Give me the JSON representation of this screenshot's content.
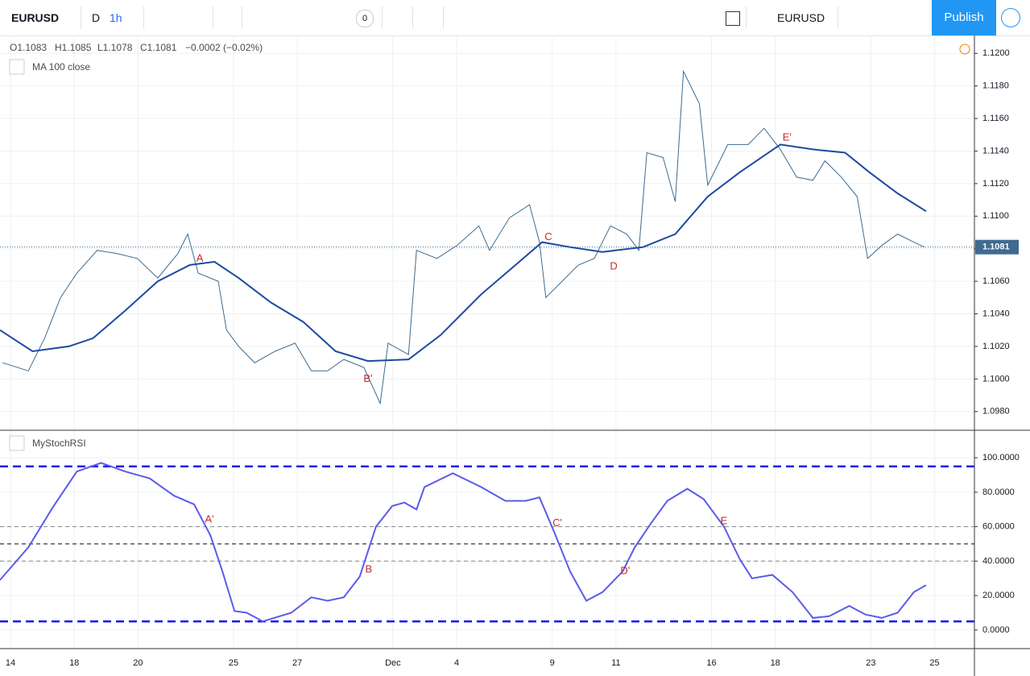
{
  "toolbar": {
    "symbol": "EURUSD",
    "period_d": "D",
    "interval": "1h",
    "alerts_count": "0",
    "compare_symbol": "EURUSD",
    "publish": "Publish"
  },
  "legend": {
    "open": "O1.1083",
    "high": "H1.1085",
    "low": "L1.1078",
    "close": "C1.1081",
    "change": "−0.0002 (−0.02%)"
  },
  "chart_data": [
    {
      "type": "line",
      "title": "MA 100 close",
      "ylim": [
        1.0969,
        1.1211
      ],
      "yticks": [
        {
          "value": 1.098,
          "label": "1.0980"
        },
        {
          "value": 1.1,
          "label": "1.1000"
        },
        {
          "value": 1.102,
          "label": "1.1020"
        },
        {
          "value": 1.104,
          "label": "1.1040"
        },
        {
          "value": 1.106,
          "label": "1.1060"
        },
        {
          "value": 1.108,
          "label": "1.1080"
        },
        {
          "value": 1.11,
          "label": "1.1100"
        },
        {
          "value": 1.112,
          "label": "1.1120"
        },
        {
          "value": 1.114,
          "label": "1.1140"
        },
        {
          "value": 1.116,
          "label": "1.1160"
        },
        {
          "value": 1.118,
          "label": "1.1180"
        },
        {
          "value": 1.12,
          "label": "1.1200"
        }
      ],
      "grid": true,
      "last_price": {
        "value": 1.1081,
        "label": "1.1081"
      },
      "series": [
        {
          "name": "EURUSD",
          "color": "#3e6b8f",
          "width": 1,
          "x": [
            -0.25,
            0.56,
            1.07,
            1.57,
            2.08,
            2.72,
            3.35,
            3.98,
            4.62,
            5.25,
            5.56,
            5.89,
            6.52,
            6.78,
            7.16,
            7.66,
            8.3,
            8.93,
            9.44,
            9.95,
            10.46,
            11.09,
            11.6,
            11.85,
            12.49,
            12.74,
            13.38,
            14.01,
            14.7,
            15.03,
            15.66,
            16.29,
            16.6,
            16.8,
            17.31,
            17.82,
            18.32,
            18.83,
            19.34,
            19.72,
            19.97,
            20.48,
            20.86,
            21.12,
            21.62,
            21.88,
            22.51,
            23.15,
            23.65,
            24.16,
            24.67,
            25.18,
            25.56,
            26.07,
            26.57,
            26.9,
            27.34,
            27.84,
            28.35,
            28.68
          ],
          "values": [
            1.101,
            1.1005,
            1.1025,
            1.105,
            1.1065,
            1.1079,
            1.1077,
            1.1074,
            1.1062,
            1.1077,
            1.1089,
            1.1065,
            1.106,
            1.103,
            1.102,
            1.101,
            1.1017,
            1.1022,
            1.1005,
            1.1005,
            1.1012,
            1.1007,
            1.0985,
            1.1022,
            1.1015,
            1.1079,
            1.1074,
            1.1082,
            1.1094,
            1.1079,
            1.1099,
            1.1107,
            1.1084,
            1.105,
            1.106,
            1.107,
            1.1074,
            1.1094,
            1.1089,
            1.1079,
            1.1139,
            1.1136,
            1.1109,
            1.1189,
            1.1169,
            1.1119,
            1.1144,
            1.1144,
            1.1154,
            1.1141,
            1.1124,
            1.1122,
            1.1134,
            1.1124,
            1.1112,
            1.1074,
            1.1082,
            1.1089,
            1.1084,
            1.1081
          ]
        },
        {
          "name": "MA 100 close",
          "color": "#1c4aa0",
          "width": 2,
          "x": [
            -0.33,
            0.69,
            1.83,
            2.59,
            3.6,
            4.62,
            5.63,
            6.4,
            7.16,
            8.17,
            9.19,
            10.2,
            11.22,
            12.49,
            13.5,
            14.77,
            15.79,
            16.68,
            17.56,
            18.58,
            19.85,
            20.86,
            21.88,
            22.89,
            24.16,
            25.18,
            26.19,
            26.95,
            27.84,
            28.73
          ],
          "values": [
            1.103,
            1.1017,
            1.102,
            1.1025,
            1.1042,
            1.106,
            1.107,
            1.1072,
            1.1062,
            1.1047,
            1.1035,
            1.1017,
            1.1011,
            1.1012,
            1.1027,
            1.1052,
            1.1069,
            1.1084,
            1.1081,
            1.1078,
            1.1081,
            1.1089,
            1.1112,
            1.1127,
            1.1144,
            1.1141,
            1.1139,
            1.1127,
            1.1114,
            1.1103
          ]
        }
      ],
      "annotations": [
        {
          "text": "A",
          "x": 5.94,
          "y": 1.1074
        },
        {
          "text": "B'",
          "x": 11.22,
          "y": 1.1
        },
        {
          "text": "C",
          "x": 16.88,
          "y": 1.1087
        },
        {
          "text": "D",
          "x": 18.93,
          "y": 1.1069
        },
        {
          "text": "E'",
          "x": 24.37,
          "y": 1.1148
        }
      ]
    },
    {
      "type": "line",
      "title": "MyStochRSI",
      "ylim": [
        -10.8,
        115.5
      ],
      "yticks": [
        {
          "value": 0,
          "label": "0.0000"
        },
        {
          "value": 20,
          "label": "20.0000"
        },
        {
          "value": 40,
          "label": "40.0000"
        },
        {
          "value": 60,
          "label": "60.0000"
        },
        {
          "value": 80,
          "label": "80.0000"
        },
        {
          "value": 100,
          "label": "100.0000"
        }
      ],
      "xlim": [
        -0.33,
        30.25
      ],
      "xticks": [
        {
          "value": 0,
          "label": "14"
        },
        {
          "value": 2,
          "label": "18"
        },
        {
          "value": 4,
          "label": "20"
        },
        {
          "value": 7,
          "label": "25"
        },
        {
          "value": 9,
          "label": "27"
        },
        {
          "value": 12,
          "label": "Dec"
        },
        {
          "value": 14,
          "label": "4"
        },
        {
          "value": 17,
          "label": "9"
        },
        {
          "value": 19,
          "label": "11"
        },
        {
          "value": 22,
          "label": "16"
        },
        {
          "value": 24,
          "label": "18"
        },
        {
          "value": 27,
          "label": "23"
        },
        {
          "value": 29,
          "label": "25"
        }
      ],
      "hlines": [
        {
          "value": 95,
          "color": "#1a1aee",
          "width": 2.5
        },
        {
          "value": 5,
          "color": "#1a1aee",
          "width": 2.5
        },
        {
          "value": 60,
          "color": "#888888",
          "width": 1
        },
        {
          "value": 40,
          "color": "#888888",
          "width": 1
        },
        {
          "value": 50,
          "color": "#000000",
          "width": 1
        }
      ],
      "series": [
        {
          "name": "MyStochRSI",
          "color": "#5b5bea",
          "width": 2,
          "x": [
            -0.33,
            0.56,
            1.32,
            2.08,
            2.84,
            3.6,
            4.37,
            5.13,
            5.76,
            6.27,
            6.65,
            7.03,
            7.41,
            7.92,
            8.81,
            9.44,
            9.95,
            10.46,
            10.96,
            11.47,
            11.98,
            12.36,
            12.74,
            12.99,
            13.88,
            14.77,
            15.53,
            16.17,
            16.6,
            17.06,
            17.56,
            18.07,
            18.58,
            19.21,
            19.59,
            20.1,
            20.61,
            21.24,
            21.75,
            22.39,
            22.89,
            23.27,
            23.91,
            24.54,
            25.18,
            25.69,
            26.32,
            26.83,
            27.34,
            27.84,
            28.35,
            28.73
          ],
          "values": [
            29,
            48,
            71,
            92,
            97,
            92,
            88,
            78,
            73,
            55,
            34,
            11,
            10,
            5,
            10,
            19,
            17,
            19,
            31,
            60,
            72,
            74,
            70,
            83,
            91,
            83,
            75,
            75,
            77,
            57,
            34,
            17,
            22,
            34,
            48,
            62,
            75,
            82,
            76,
            60,
            41,
            30,
            32,
            22,
            7,
            8,
            14,
            9,
            7,
            10,
            22,
            26
          ]
        }
      ],
      "annotations": [
        {
          "text": "A'",
          "x": 6.24,
          "y": 64
        },
        {
          "text": "B",
          "x": 11.24,
          "y": 35
        },
        {
          "text": "C'",
          "x": 17.16,
          "y": 62
        },
        {
          "text": "D'",
          "x": 19.29,
          "y": 34
        },
        {
          "text": "E",
          "x": 22.39,
          "y": 63
        }
      ]
    }
  ]
}
